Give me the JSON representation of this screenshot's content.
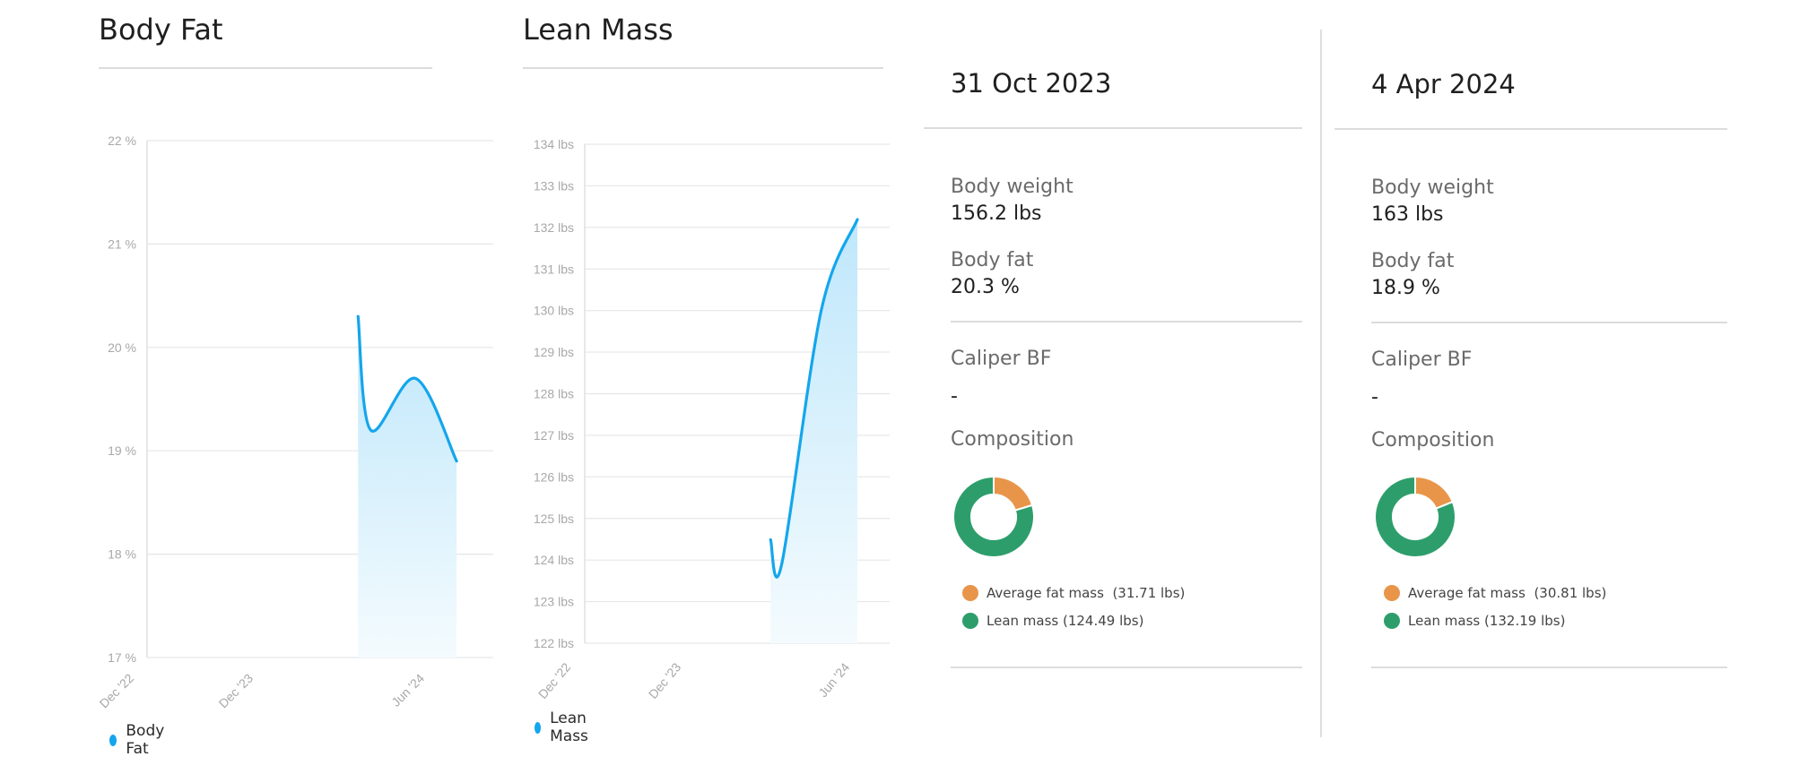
{
  "colors": {
    "series_line": "#14a6ec",
    "fat": "#e8954a",
    "lean": "#2d9e6b"
  },
  "body_fat_chart": {
    "panel_title": "Body Fat",
    "legend": "Body Fat",
    "y_ticks": [
      "22 %",
      "21 %",
      "20 %",
      "19 %",
      "18 %",
      "17 %"
    ],
    "x_ticks": [
      "Dec '22",
      "Dec '23",
      "Jun '24"
    ]
  },
  "lean_mass_chart": {
    "panel_title": "Lean Mass",
    "legend": "Lean Mass",
    "y_ticks": [
      "134 lbs",
      "133 lbs",
      "132 lbs",
      "131 lbs",
      "130 lbs",
      "129 lbs",
      "128 lbs",
      "127 lbs",
      "126 lbs",
      "125 lbs",
      "124 lbs",
      "123 lbs",
      "122 lbs"
    ],
    "x_ticks": [
      "Dec '22",
      "Dec '23",
      "Jun '24"
    ]
  },
  "chart_data": [
    {
      "type": "area",
      "title": "Body Fat",
      "ylim": [
        17,
        22
      ],
      "x_ticks": [
        "Dec '22",
        "Dec '23",
        "Jun '24"
      ],
      "y_unit": "%",
      "series": [
        {
          "name": "Body Fat",
          "x": [
            "2023-10-31",
            "2023-11-20",
            "2024-01-30",
            "2024-04-04"
          ],
          "y": [
            20.3,
            19.2,
            19.7,
            18.9
          ]
        }
      ]
    },
    {
      "type": "area",
      "title": "Lean Mass",
      "ylim": [
        122,
        134
      ],
      "x_ticks": [
        "Dec '22",
        "Dec '23",
        "Jun '24"
      ],
      "y_unit": "lbs",
      "series": [
        {
          "name": "Lean Mass",
          "x": [
            "2023-10-31",
            "2023-11-20",
            "2024-01-30",
            "2024-04-04"
          ],
          "y": [
            124.49,
            123.9,
            130.0,
            132.19
          ]
        }
      ]
    },
    {
      "type": "pie",
      "title": "31 Oct 2023",
      "labels": [
        "Average fat mass",
        "Lean mass"
      ],
      "values": [
        31.71,
        124.49
      ]
    },
    {
      "type": "pie",
      "title": "4 Apr 2024",
      "labels": [
        "Average fat mass",
        "Lean mass"
      ],
      "values": [
        30.81,
        132.19
      ]
    }
  ],
  "summaries": [
    {
      "date": "31 Oct 2023",
      "body_weight_label": "Body weight",
      "body_weight": "156.2 lbs",
      "body_fat_label": "Body fat",
      "body_fat": "20.3 %",
      "caliper_label": "Caliper BF",
      "caliper_value": "-",
      "composition_label": "Composition",
      "fat_legend": "Average fat mass  (31.71 lbs)",
      "lean_legend": "Lean mass (124.49 lbs)"
    },
    {
      "date": "4 Apr 2024",
      "body_weight_label": "Body weight",
      "body_weight": "163 lbs",
      "body_fat_label": "Body fat",
      "body_fat": "18.9 %",
      "caliper_label": "Caliper BF",
      "caliper_value": "-",
      "composition_label": "Composition",
      "fat_legend": "Average fat mass  (30.81 lbs)",
      "lean_legend": "Lean mass (132.19 lbs)"
    }
  ]
}
